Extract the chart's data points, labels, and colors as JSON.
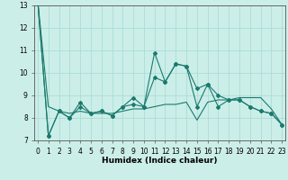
{
  "title": "",
  "xlabel": "Humidex (Indice chaleur)",
  "x_values": [
    0,
    1,
    2,
    3,
    4,
    5,
    6,
    7,
    8,
    9,
    10,
    11,
    12,
    13,
    14,
    15,
    16,
    17,
    18,
    19,
    20,
    21,
    22,
    23
  ],
  "line1": [
    13.2,
    7.2,
    8.3,
    8.0,
    8.7,
    8.2,
    8.3,
    8.1,
    8.5,
    8.9,
    8.5,
    10.9,
    9.6,
    10.4,
    10.3,
    9.3,
    9.5,
    9.0,
    8.8,
    8.8,
    8.5,
    8.3,
    8.2,
    7.7
  ],
  "line2": [
    13.2,
    7.2,
    8.3,
    8.0,
    8.5,
    8.2,
    8.3,
    8.1,
    8.5,
    8.6,
    8.5,
    9.8,
    9.6,
    10.4,
    10.3,
    8.5,
    9.5,
    8.5,
    8.8,
    8.8,
    8.5,
    8.3,
    8.2,
    7.7
  ],
  "smooth_line": [
    13.2,
    8.5,
    8.3,
    8.2,
    8.3,
    8.2,
    8.2,
    8.2,
    8.3,
    8.4,
    8.4,
    8.5,
    8.6,
    8.6,
    8.7,
    7.9,
    8.7,
    8.8,
    8.8,
    8.9,
    8.9,
    8.9,
    8.4,
    7.7
  ],
  "ylim": [
    7,
    13
  ],
  "xlim": [
    -0.3,
    23.3
  ],
  "line_color": "#1a7a6e",
  "bg_color": "#cceee8",
  "grid_color": "#aaddd8",
  "marker": "D",
  "marker_size": 2.0,
  "yticks": [
    7,
    8,
    9,
    10,
    11,
    12,
    13
  ],
  "xlabel_fontsize": 6.5,
  "tick_fontsize": 5.5
}
